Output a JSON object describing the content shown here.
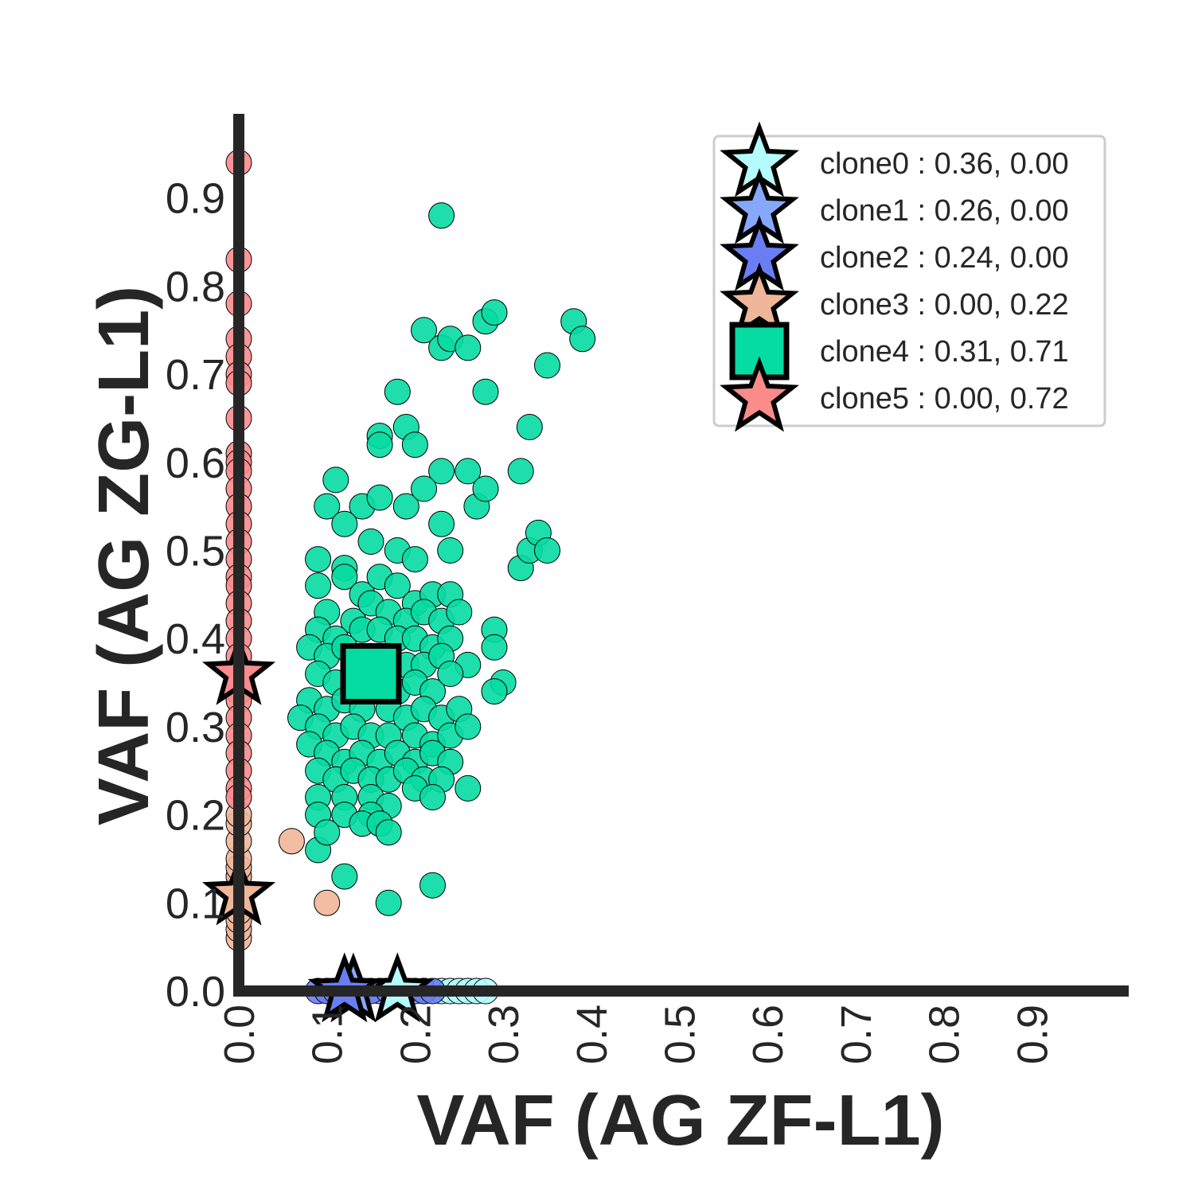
{
  "chart_data": {
    "type": "scatter",
    "title": "",
    "xlabel": "VAF (AG ZF-L1)",
    "ylabel": "VAF (AG ZG-L1)",
    "xlim": [
      0.0,
      1.0
    ],
    "ylim": [
      0.0,
      1.0
    ],
    "x_ticks": [
      "0.0",
      "0.1",
      "0.2",
      "0.3",
      "0.4",
      "0.5",
      "0.6",
      "0.7",
      "0.8",
      "0.9"
    ],
    "y_ticks": [
      "0.0",
      "0.1",
      "0.2",
      "0.3",
      "0.4",
      "0.5",
      "0.6",
      "0.7",
      "0.8",
      "0.9"
    ],
    "grid": false,
    "legend_position": "top-right",
    "series": [
      {
        "name": "clone0 : 0.36, 0.00",
        "color": "#b4fbfb",
        "marker": "star",
        "centroid": [
          0.18,
          0.0
        ],
        "points": [
          [
            0.19,
            0.0
          ],
          [
            0.21,
            0.0
          ],
          [
            0.23,
            0.0
          ],
          [
            0.24,
            0.0
          ],
          [
            0.25,
            0.0
          ],
          [
            0.26,
            0.0
          ],
          [
            0.27,
            0.0
          ],
          [
            0.28,
            0.0
          ]
        ]
      },
      {
        "name": "clone1 : 0.26, 0.00",
        "color": "#86a8fb",
        "marker": "star",
        "centroid": [
          0.13,
          0.0
        ],
        "points": [
          [
            0.12,
            0.0
          ],
          [
            0.14,
            0.0
          ],
          [
            0.16,
            0.0
          ],
          [
            0.18,
            0.0
          ],
          [
            0.2,
            0.0
          ]
        ]
      },
      {
        "name": "clone2 : 0.24, 0.00",
        "color": "#6a7ef4",
        "marker": "star",
        "centroid": [
          0.12,
          0.0
        ],
        "points": [
          [
            0.09,
            0.0
          ],
          [
            0.1,
            0.0
          ],
          [
            0.11,
            0.0
          ],
          [
            0.13,
            0.0
          ],
          [
            0.15,
            0.0
          ],
          [
            0.17,
            0.0
          ],
          [
            0.19,
            0.0
          ],
          [
            0.21,
            0.0
          ],
          [
            0.22,
            0.0
          ]
        ]
      },
      {
        "name": "clone3 : 0.00, 0.22",
        "color": "#f0b699",
        "marker": "star",
        "centroid": [
          0.0,
          0.11
        ],
        "points": [
          [
            0.0,
            0.06
          ],
          [
            0.0,
            0.07
          ],
          [
            0.0,
            0.08
          ],
          [
            0.0,
            0.09
          ],
          [
            0.0,
            0.1
          ],
          [
            0.0,
            0.11
          ],
          [
            0.0,
            0.12
          ],
          [
            0.0,
            0.13
          ],
          [
            0.0,
            0.14
          ],
          [
            0.0,
            0.15
          ],
          [
            0.0,
            0.17
          ],
          [
            0.0,
            0.19
          ],
          [
            0.0,
            0.2
          ],
          [
            0.06,
            0.17
          ],
          [
            0.1,
            0.1
          ]
        ]
      },
      {
        "name": "clone4 : 0.31, 0.71",
        "color": "#05dca2",
        "marker": "square",
        "centroid": [
          0.15,
          0.36
        ],
        "points": [
          [
            0.23,
            0.88
          ],
          [
            0.21,
            0.75
          ],
          [
            0.23,
            0.73
          ],
          [
            0.24,
            0.74
          ],
          [
            0.26,
            0.73
          ],
          [
            0.28,
            0.76
          ],
          [
            0.29,
            0.77
          ],
          [
            0.38,
            0.76
          ],
          [
            0.39,
            0.74
          ],
          [
            0.35,
            0.71
          ],
          [
            0.18,
            0.68
          ],
          [
            0.28,
            0.68
          ],
          [
            0.16,
            0.63
          ],
          [
            0.16,
            0.62
          ],
          [
            0.19,
            0.64
          ],
          [
            0.2,
            0.62
          ],
          [
            0.33,
            0.64
          ],
          [
            0.23,
            0.59
          ],
          [
            0.26,
            0.59
          ],
          [
            0.32,
            0.59
          ],
          [
            0.11,
            0.58
          ],
          [
            0.1,
            0.55
          ],
          [
            0.14,
            0.55
          ],
          [
            0.16,
            0.56
          ],
          [
            0.19,
            0.55
          ],
          [
            0.21,
            0.57
          ],
          [
            0.27,
            0.55
          ],
          [
            0.28,
            0.57
          ],
          [
            0.12,
            0.53
          ],
          [
            0.23,
            0.53
          ],
          [
            0.15,
            0.51
          ],
          [
            0.18,
            0.5
          ],
          [
            0.2,
            0.49
          ],
          [
            0.24,
            0.5
          ],
          [
            0.32,
            0.48
          ],
          [
            0.33,
            0.5
          ],
          [
            0.34,
            0.52
          ],
          [
            0.35,
            0.5
          ],
          [
            0.09,
            0.49
          ],
          [
            0.12,
            0.48
          ],
          [
            0.09,
            0.46
          ],
          [
            0.12,
            0.47
          ],
          [
            0.14,
            0.45
          ],
          [
            0.16,
            0.47
          ],
          [
            0.18,
            0.46
          ],
          [
            0.2,
            0.44
          ],
          [
            0.22,
            0.45
          ],
          [
            0.24,
            0.45
          ],
          [
            0.1,
            0.43
          ],
          [
            0.13,
            0.42
          ],
          [
            0.15,
            0.44
          ],
          [
            0.17,
            0.43
          ],
          [
            0.19,
            0.42
          ],
          [
            0.21,
            0.43
          ],
          [
            0.23,
            0.42
          ],
          [
            0.25,
            0.43
          ],
          [
            0.09,
            0.41
          ],
          [
            0.11,
            0.4
          ],
          [
            0.14,
            0.41
          ],
          [
            0.16,
            0.41
          ],
          [
            0.18,
            0.4
          ],
          [
            0.2,
            0.4
          ],
          [
            0.22,
            0.39
          ],
          [
            0.24,
            0.4
          ],
          [
            0.29,
            0.41
          ],
          [
            0.08,
            0.39
          ],
          [
            0.1,
            0.38
          ],
          [
            0.12,
            0.39
          ],
          [
            0.15,
            0.38
          ],
          [
            0.17,
            0.38
          ],
          [
            0.19,
            0.37
          ],
          [
            0.21,
            0.37
          ],
          [
            0.23,
            0.38
          ],
          [
            0.26,
            0.37
          ],
          [
            0.29,
            0.39
          ],
          [
            0.09,
            0.36
          ],
          [
            0.11,
            0.35
          ],
          [
            0.13,
            0.36
          ],
          [
            0.16,
            0.35
          ],
          [
            0.18,
            0.34
          ],
          [
            0.2,
            0.35
          ],
          [
            0.22,
            0.34
          ],
          [
            0.24,
            0.36
          ],
          [
            0.3,
            0.35
          ],
          [
            0.29,
            0.34
          ],
          [
            0.08,
            0.33
          ],
          [
            0.1,
            0.32
          ],
          [
            0.12,
            0.33
          ],
          [
            0.14,
            0.32
          ],
          [
            0.17,
            0.32
          ],
          [
            0.19,
            0.31
          ],
          [
            0.21,
            0.32
          ],
          [
            0.23,
            0.31
          ],
          [
            0.25,
            0.32
          ],
          [
            0.07,
            0.31
          ],
          [
            0.09,
            0.3
          ],
          [
            0.11,
            0.29
          ],
          [
            0.13,
            0.3
          ],
          [
            0.15,
            0.29
          ],
          [
            0.17,
            0.29
          ],
          [
            0.2,
            0.29
          ],
          [
            0.22,
            0.28
          ],
          [
            0.24,
            0.29
          ],
          [
            0.26,
            0.3
          ],
          [
            0.08,
            0.28
          ],
          [
            0.1,
            0.27
          ],
          [
            0.12,
            0.26
          ],
          [
            0.14,
            0.27
          ],
          [
            0.16,
            0.26
          ],
          [
            0.18,
            0.27
          ],
          [
            0.2,
            0.26
          ],
          [
            0.22,
            0.27
          ],
          [
            0.24,
            0.26
          ],
          [
            0.09,
            0.25
          ],
          [
            0.11,
            0.24
          ],
          [
            0.13,
            0.25
          ],
          [
            0.15,
            0.24
          ],
          [
            0.17,
            0.24
          ],
          [
            0.19,
            0.25
          ],
          [
            0.21,
            0.24
          ],
          [
            0.23,
            0.24
          ],
          [
            0.26,
            0.23
          ],
          [
            0.09,
            0.22
          ],
          [
            0.12,
            0.22
          ],
          [
            0.15,
            0.22
          ],
          [
            0.17,
            0.21
          ],
          [
            0.2,
            0.23
          ],
          [
            0.22,
            0.22
          ],
          [
            0.12,
            0.2
          ],
          [
            0.15,
            0.2
          ],
          [
            0.09,
            0.2
          ],
          [
            0.14,
            0.19
          ],
          [
            0.16,
            0.19
          ],
          [
            0.09,
            0.16
          ],
          [
            0.1,
            0.18
          ],
          [
            0.17,
            0.18
          ],
          [
            0.12,
            0.13
          ],
          [
            0.22,
            0.12
          ],
          [
            0.17,
            0.1
          ]
        ]
      },
      {
        "name": "clone5 : 0.00, 0.72",
        "color": "#fc8b8b",
        "marker": "star",
        "centroid": [
          0.0,
          0.36
        ],
        "points": [
          [
            0.0,
            0.94
          ],
          [
            0.0,
            0.83
          ],
          [
            0.0,
            0.78
          ],
          [
            0.0,
            0.74
          ],
          [
            0.0,
            0.72
          ],
          [
            0.0,
            0.7
          ],
          [
            0.0,
            0.69
          ],
          [
            0.0,
            0.65
          ],
          [
            0.0,
            0.61
          ],
          [
            0.0,
            0.6
          ],
          [
            0.0,
            0.59
          ],
          [
            0.0,
            0.57
          ],
          [
            0.0,
            0.55
          ],
          [
            0.0,
            0.53
          ],
          [
            0.0,
            0.51
          ],
          [
            0.0,
            0.49
          ],
          [
            0.0,
            0.47
          ],
          [
            0.0,
            0.46
          ],
          [
            0.0,
            0.44
          ],
          [
            0.0,
            0.42
          ],
          [
            0.0,
            0.4
          ],
          [
            0.0,
            0.38
          ],
          [
            0.0,
            0.36
          ],
          [
            0.0,
            0.34
          ],
          [
            0.0,
            0.33
          ],
          [
            0.0,
            0.31
          ],
          [
            0.0,
            0.29
          ],
          [
            0.0,
            0.27
          ],
          [
            0.0,
            0.25
          ],
          [
            0.0,
            0.23
          ],
          [
            0.0,
            0.22
          ]
        ]
      }
    ]
  }
}
